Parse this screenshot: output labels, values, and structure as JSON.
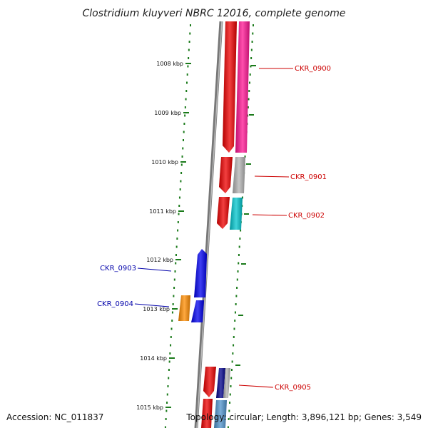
{
  "title": "Clostridium kluyveri NBRC 12016, complete genome",
  "footer": {
    "accession": "Accession: NC_011837",
    "topology": "Topology: circular; Length: 3,896,121 bp; Genes: 3,549"
  },
  "colors": {
    "backbone": "#8c8c8c",
    "ticks": "#1a7a1a",
    "forward_label": "#cc0000",
    "reverse_label": "#0000aa"
  },
  "scale_ticks": [
    "1008 kbp",
    "1009 kbp",
    "1010 kbp",
    "1011 kbp",
    "1012 kbp",
    "1013 kbp",
    "1014 kbp",
    "1015 kbp"
  ],
  "gene_labels": [
    {
      "label": "CKR_0900",
      "strand": "forward"
    },
    {
      "label": "CKR_0901",
      "strand": "forward"
    },
    {
      "label": "CKR_0902",
      "strand": "forward"
    },
    {
      "label": "CKR_0903",
      "strand": "reverse"
    },
    {
      "label": "CKR_0904",
      "strand": "reverse"
    },
    {
      "label": "CKR_0905",
      "strand": "forward"
    }
  ],
  "features": [
    {
      "name": "gene-inner-1",
      "color": "#ee0000"
    },
    {
      "name": "gene-outer-1",
      "color": "#ff1493"
    },
    {
      "name": "gene-inner-2",
      "color": "#ee0000"
    },
    {
      "name": "gene-outer-2",
      "color": "#b3b3b3"
    },
    {
      "name": "gene-inner-3",
      "color": "#ee0000"
    },
    {
      "name": "gene-outer-3",
      "color": "#00c5cd"
    },
    {
      "name": "gene-rev-1",
      "color": "#0000ee"
    },
    {
      "name": "gene-rev-2",
      "color": "#0000ee"
    },
    {
      "name": "gene-rev-outer",
      "color": "#ff8c00"
    },
    {
      "name": "gene-inner-4",
      "color": "#ee0000"
    },
    {
      "name": "gene-outer-4",
      "color": "#00008b"
    },
    {
      "name": "gene-outer-5",
      "color": "#b3b3b3"
    },
    {
      "name": "gene-inner-5",
      "color": "#ee0000"
    },
    {
      "name": "gene-outer-6",
      "color": "#4f94cd"
    }
  ]
}
